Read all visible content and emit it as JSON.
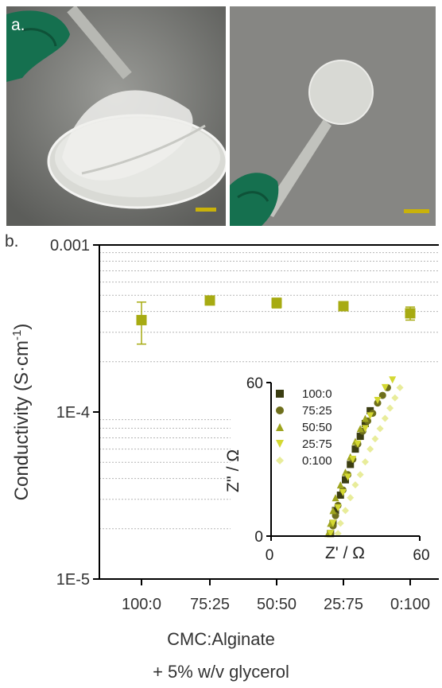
{
  "panel_labels": {
    "a": "a.",
    "b": "b."
  },
  "colors": {
    "marker": "#a7ab12",
    "scale_bar": "#c9b20a",
    "glove": "#15704f",
    "photo_bg_left": "#7a7b77",
    "photo_bg_right": "#8c8d89"
  },
  "chart_data": [
    {
      "type": "scatter",
      "categories": [
        "100:0",
        "75:25",
        "50:50",
        "25:75",
        "0:100"
      ],
      "series": [
        {
          "values": [
            0.000355,
            0.000465,
            0.00045,
            0.00043,
            0.00039
          ],
          "error": [
            0.0001,
            1.5e-05,
            3e-05,
            2e-05,
            3.5e-05
          ],
          "marker": "square",
          "color": "#a7ab12"
        }
      ],
      "y_scale": "log",
      "ylim": [
        1e-05,
        0.001
      ],
      "y_ticks": [
        "0.001",
        "1E-4",
        "1E-5"
      ],
      "ylabel": "Conductivity (S·cm",
      "ylabel_sup": "-1",
      "ylabel_tail": ")",
      "xlabel_line1": "CMC:Alginate",
      "xlabel_line2": "+ 5% w/v  glycerol",
      "grid": "y-minor dotted"
    },
    {
      "type": "scatter",
      "xlim": [
        0,
        60
      ],
      "ylim": [
        0,
        60
      ],
      "x_ticks": [
        "0",
        "60"
      ],
      "y_ticks": [
        "0",
        "60"
      ],
      "xlabel": "Z' / Ω",
      "ylabel": "Z'' / Ω",
      "legend_position": "top-left",
      "series": [
        {
          "name": "100:0",
          "marker": "square",
          "color": "#3b3d12",
          "points": [
            [
              24,
              1
            ],
            [
              25,
              5
            ],
            [
              26,
              10
            ],
            [
              28,
              16
            ],
            [
              30,
              22
            ],
            [
              32,
              28
            ],
            [
              34,
              34
            ],
            [
              36,
              39
            ],
            [
              38,
              44
            ],
            [
              40,
              49
            ]
          ]
        },
        {
          "name": "75:25",
          "marker": "circle",
          "color": "#6e6f1c",
          "points": [
            [
              24,
              1
            ],
            [
              25,
              4
            ],
            [
              26,
              8
            ],
            [
              27,
              12
            ],
            [
              29,
              18
            ],
            [
              31,
              24
            ],
            [
              33,
              30
            ],
            [
              35,
              36
            ],
            [
              37,
              41
            ],
            [
              39,
              45
            ],
            [
              41,
              48
            ],
            [
              43,
              52
            ],
            [
              45,
              55
            ],
            [
              47,
              58
            ]
          ]
        },
        {
          "name": "50:50",
          "marker": "triangle-up",
          "color": "#9ea41e",
          "points": [
            [
              23,
              1
            ],
            [
              24,
              5
            ],
            [
              25,
              10
            ],
            [
              26,
              15
            ],
            [
              28,
              20
            ],
            [
              30,
              25
            ],
            [
              32,
              31
            ],
            [
              34,
              37
            ],
            [
              36,
              42
            ],
            [
              38,
              46
            ]
          ]
        },
        {
          "name": "25:75",
          "marker": "triangle-down",
          "color": "#d4d832",
          "points": [
            [
              24,
              1
            ],
            [
              25,
              5
            ],
            [
              27,
              11
            ],
            [
              29,
              17
            ],
            [
              31,
              23
            ],
            [
              33,
              30
            ],
            [
              35,
              36
            ],
            [
              38,
              42
            ],
            [
              40,
              47
            ],
            [
              43,
              53
            ],
            [
              46,
              58
            ],
            [
              49,
              61
            ]
          ]
        },
        {
          "name": "0:100",
          "marker": "diamond",
          "color": "#e8ec9a",
          "points": [
            [
              27,
              1
            ],
            [
              28,
              5
            ],
            [
              30,
              10
            ],
            [
              32,
              15
            ],
            [
              34,
              20
            ],
            [
              36,
              24
            ],
            [
              38,
              29
            ],
            [
              40,
              34
            ],
            [
              42,
              38
            ],
            [
              44,
              42
            ],
            [
              46,
              46
            ],
            [
              48,
              50
            ],
            [
              50,
              54
            ],
            [
              52,
              58
            ],
            [
              54,
              62
            ]
          ]
        }
      ]
    }
  ]
}
